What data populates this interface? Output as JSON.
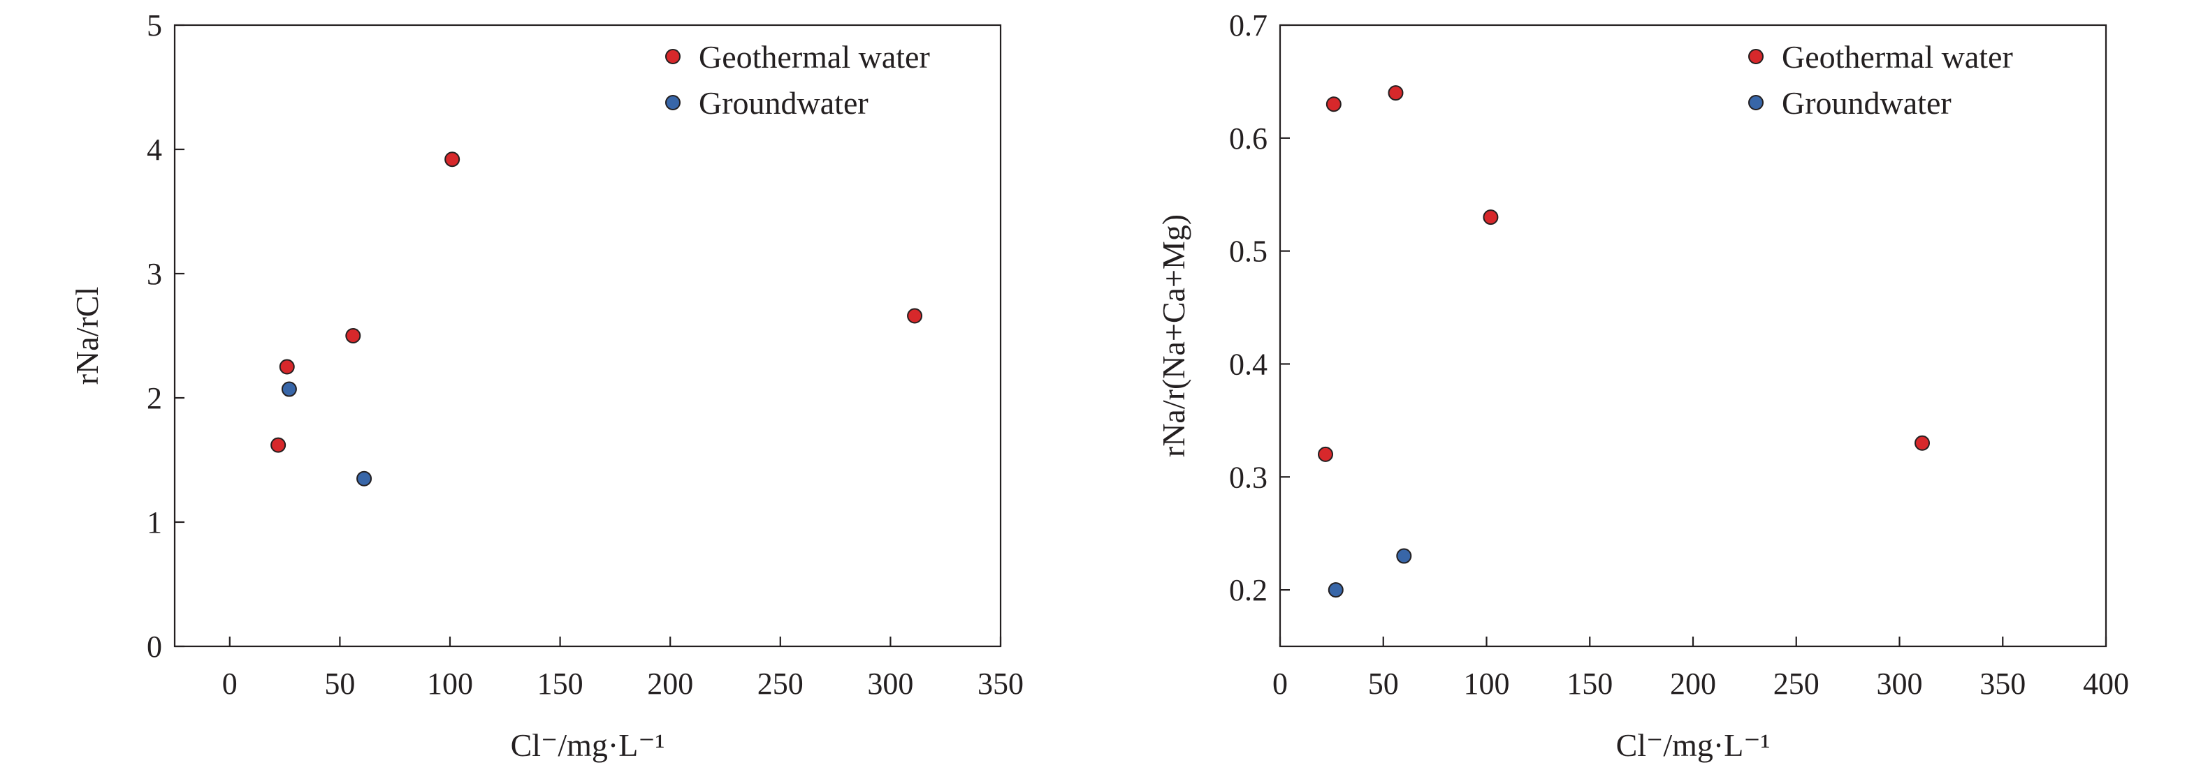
{
  "colors": {
    "geothermal": "#d7282b",
    "groundwater": "#3866a8"
  },
  "chart_data": [
    {
      "type": "scatter",
      "xlabel": "Cl⁻/mg·L⁻¹",
      "ylabel": "rNa/rCl",
      "xlim": [
        -25,
        350
      ],
      "ylim": [
        0,
        5
      ],
      "xticks": [
        0,
        50,
        100,
        150,
        200,
        250,
        300,
        350
      ],
      "yticks": [
        0,
        1,
        2,
        3,
        4,
        5
      ],
      "grid": false,
      "legend_position": "top-right",
      "series": [
        {
          "name": "Geothermal water",
          "color": "#d7282b",
          "points": [
            [
              22,
              1.62
            ],
            [
              26,
              2.25
            ],
            [
              56,
              2.5
            ],
            [
              101,
              3.92
            ],
            [
              311,
              2.66
            ]
          ]
        },
        {
          "name": "Groundwater",
          "color": "#3866a8",
          "points": [
            [
              27,
              2.07
            ],
            [
              61,
              1.35
            ]
          ]
        }
      ]
    },
    {
      "type": "scatter",
      "xlabel": "Cl⁻/mg·L⁻¹",
      "ylabel": "rNa/r(Na+Ca+Mg)",
      "xlim": [
        0,
        400
      ],
      "ylim": [
        0.15,
        0.7
      ],
      "xticks": [
        0,
        50,
        100,
        150,
        200,
        250,
        300,
        350,
        400
      ],
      "yticks": [
        0.2,
        0.3,
        0.4,
        0.5,
        0.6,
        0.7
      ],
      "grid": false,
      "legend_position": "top-right",
      "series": [
        {
          "name": "Geothermal water",
          "color": "#d7282b",
          "points": [
            [
              22,
              0.32
            ],
            [
              26,
              0.63
            ],
            [
              56,
              0.64
            ],
            [
              102,
              0.53
            ],
            [
              311,
              0.33
            ]
          ]
        },
        {
          "name": "Groundwater",
          "color": "#3866a8",
          "points": [
            [
              27,
              0.2
            ],
            [
              60,
              0.23
            ]
          ]
        }
      ]
    }
  ]
}
